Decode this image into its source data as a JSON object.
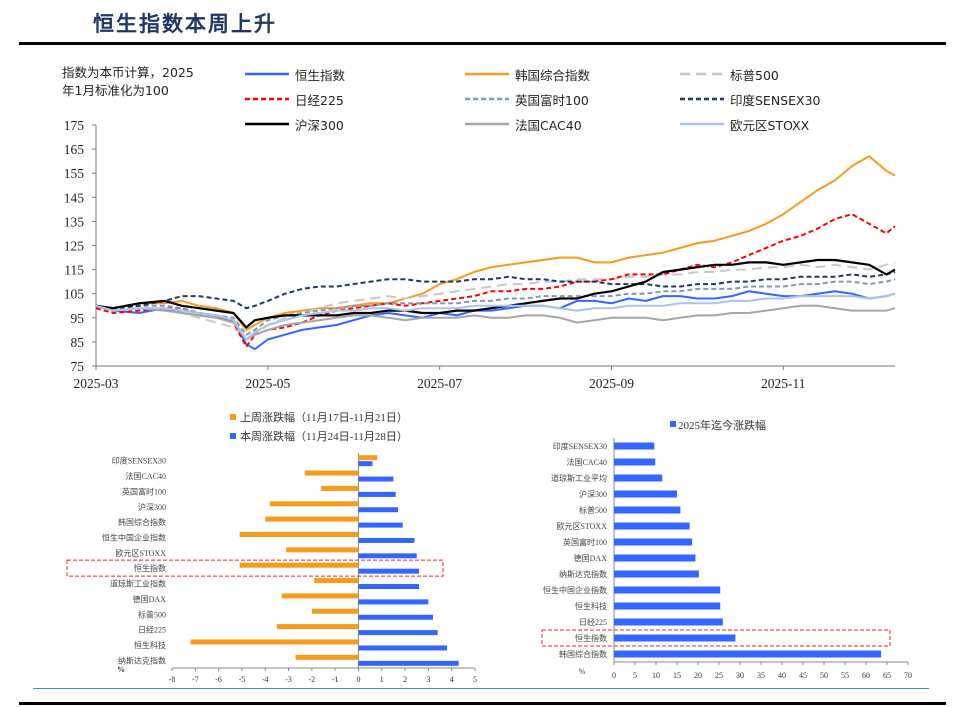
{
  "page": {
    "title": "恒生指数本周上升"
  },
  "chart_data": [
    {
      "id": "index-performance",
      "type": "line",
      "title": "",
      "note": [
        "指数为本币计算，2025",
        "年1月标准化为100"
      ],
      "xlabel": "",
      "ylabel": "",
      "x_ticks": [
        "2025-03",
        "2025-05",
        "2025-07",
        "2025-09",
        "2025-11"
      ],
      "y_ticks": [
        75,
        85,
        95,
        105,
        115,
        125,
        135,
        145,
        155,
        165,
        175
      ],
      "ylim": [
        75,
        175
      ],
      "xlim_months_from_2025_03": [
        0,
        9.3
      ],
      "legend_position": "top",
      "x_unit": "months since 2025-03-01",
      "series": [
        {
          "name": "恒生指数",
          "color": "#3366ff",
          "dash": "solid",
          "width": 2,
          "x": [
            0,
            0.2,
            0.5,
            0.8,
            1,
            1.2,
            1.4,
            1.6,
            1.75,
            1.85,
            2.0,
            2.2,
            2.4,
            2.6,
            2.8,
            3.0,
            3.2,
            3.4,
            3.6,
            3.8,
            4.0,
            4.2,
            4.4,
            4.6,
            4.8,
            5.0,
            5.2,
            5.4,
            5.6,
            5.8,
            6.0,
            6.2,
            6.4,
            6.6,
            6.8,
            7.0,
            7.2,
            7.4,
            7.6,
            7.8,
            8.0,
            8.2,
            8.4,
            8.6,
            8.8,
            9.0,
            9.2,
            9.3
          ],
          "y": [
            100,
            98,
            97,
            99,
            97,
            96,
            95,
            94,
            84,
            82,
            86,
            88,
            90,
            91,
            92,
            94,
            96,
            97,
            96,
            95,
            97,
            96,
            98,
            98,
            99,
            100,
            100,
            99,
            102,
            102,
            101,
            103,
            102,
            104,
            104,
            103,
            103,
            104,
            106,
            105,
            104,
            104,
            105,
            106,
            105,
            103,
            104,
            105
          ]
        },
        {
          "name": "韩国综合指数",
          "color": "#f89a1b",
          "dash": "solid",
          "width": 2,
          "x": [
            0,
            0.2,
            0.5,
            0.8,
            1,
            1.2,
            1.4,
            1.6,
            1.75,
            1.85,
            2.0,
            2.2,
            2.4,
            2.6,
            2.8,
            3.0,
            3.2,
            3.4,
            3.6,
            3.8,
            4.0,
            4.2,
            4.4,
            4.6,
            4.8,
            5.0,
            5.2,
            5.4,
            5.6,
            5.8,
            6.0,
            6.2,
            6.4,
            6.6,
            6.8,
            7.0,
            7.2,
            7.4,
            7.6,
            7.8,
            8.0,
            8.2,
            8.4,
            8.6,
            8.8,
            9.0,
            9.2,
            9.3
          ],
          "y": [
            100,
            99,
            101,
            101,
            102,
            100,
            99,
            97,
            90,
            92,
            95,
            97,
            98,
            99,
            99,
            100,
            101,
            101,
            103,
            105,
            109,
            111,
            114,
            116,
            117,
            118,
            119,
            120,
            120,
            118,
            118,
            120,
            121,
            122,
            124,
            126,
            127,
            129,
            131,
            134,
            138,
            143,
            148,
            152,
            158,
            162,
            156,
            154
          ]
        },
        {
          "name": "标普500",
          "color": "#c8c8c8",
          "dash": "longdash",
          "width": 2,
          "x": [
            0,
            0.2,
            0.5,
            0.8,
            1,
            1.2,
            1.4,
            1.6,
            1.75,
            1.85,
            2.0,
            2.2,
            2.4,
            2.6,
            2.8,
            3.0,
            3.2,
            3.4,
            3.6,
            3.8,
            4.0,
            4.2,
            4.4,
            4.6,
            4.8,
            5.0,
            5.2,
            5.4,
            5.6,
            5.8,
            6.0,
            6.2,
            6.4,
            6.6,
            6.8,
            7.0,
            7.2,
            7.4,
            7.6,
            7.8,
            8.0,
            8.2,
            8.4,
            8.6,
            8.8,
            9.0,
            9.2,
            9.3
          ],
          "y": [
            100,
            98,
            99,
            98,
            97,
            95,
            93,
            91,
            87,
            88,
            92,
            95,
            97,
            99,
            101,
            102,
            103,
            104,
            103,
            104,
            105,
            106,
            107,
            108,
            109,
            109,
            110,
            110,
            111,
            111,
            111,
            112,
            112,
            113,
            113,
            114,
            114,
            115,
            115,
            116,
            116,
            117,
            116,
            117,
            116,
            115,
            117,
            118
          ]
        },
        {
          "name": "日经225",
          "color": "#ff0000",
          "dash": "dash",
          "width": 2,
          "x": [
            0,
            0.2,
            0.5,
            0.8,
            1,
            1.2,
            1.4,
            1.6,
            1.75,
            1.85,
            2.0,
            2.2,
            2.4,
            2.6,
            2.8,
            3.0,
            3.2,
            3.4,
            3.6,
            3.8,
            4.0,
            4.2,
            4.4,
            4.6,
            4.8,
            5.0,
            5.2,
            5.4,
            5.6,
            5.8,
            6.0,
            6.2,
            6.4,
            6.6,
            6.8,
            7.0,
            7.2,
            7.4,
            7.6,
            7.8,
            8.0,
            8.2,
            8.4,
            8.6,
            8.8,
            9.0,
            9.2,
            9.3
          ],
          "y": [
            99,
            97,
            98,
            99,
            99,
            97,
            96,
            93,
            83,
            88,
            90,
            91,
            93,
            96,
            98,
            99,
            100,
            101,
            100,
            101,
            102,
            103,
            104,
            106,
            106,
            107,
            107,
            108,
            110,
            110,
            111,
            113,
            113,
            113,
            115,
            117,
            116,
            118,
            121,
            124,
            127,
            129,
            132,
            136,
            138,
            134,
            130,
            133
          ]
        },
        {
          "name": "英国富时100",
          "color": "#8497b0",
          "dash": "dash",
          "width": 2,
          "x": [
            0,
            0.2,
            0.5,
            0.8,
            1,
            1.2,
            1.4,
            1.6,
            1.75,
            1.85,
            2.0,
            2.2,
            2.4,
            2.6,
            2.8,
            3.0,
            3.2,
            3.4,
            3.6,
            3.8,
            4.0,
            4.2,
            4.4,
            4.6,
            4.8,
            5.0,
            5.2,
            5.4,
            5.6,
            5.8,
            6.0,
            6.2,
            6.4,
            6.6,
            6.8,
            7.0,
            7.2,
            7.4,
            7.6,
            7.8,
            8.0,
            8.2,
            8.4,
            8.6,
            8.8,
            9.0,
            9.2,
            9.3
          ],
          "y": [
            100,
            99,
            100,
            100,
            99,
            97,
            96,
            95,
            88,
            90,
            94,
            96,
            97,
            98,
            99,
            100,
            100,
            101,
            101,
            101,
            101,
            101,
            102,
            102,
            103,
            103,
            104,
            104,
            104,
            104,
            104,
            105,
            105,
            106,
            106,
            107,
            107,
            107,
            108,
            108,
            108,
            109,
            109,
            110,
            110,
            109,
            110,
            111
          ]
        },
        {
          "name": "印度SENSEX30",
          "color": "#1f3864",
          "dash": "dash",
          "width": 2,
          "x": [
            0,
            0.2,
            0.5,
            0.8,
            1,
            1.2,
            1.4,
            1.6,
            1.75,
            1.85,
            2.0,
            2.2,
            2.4,
            2.6,
            2.8,
            3.0,
            3.2,
            3.4,
            3.6,
            3.8,
            4.0,
            4.2,
            4.4,
            4.6,
            4.8,
            5.0,
            5.2,
            5.4,
            5.6,
            5.8,
            6.0,
            6.2,
            6.4,
            6.6,
            6.8,
            7.0,
            7.2,
            7.4,
            7.6,
            7.8,
            8.0,
            8.2,
            8.4,
            8.6,
            8.8,
            9.0,
            9.2,
            9.3
          ],
          "y": [
            100,
            99,
            100,
            102,
            104,
            104,
            103,
            102,
            99,
            100,
            102,
            105,
            107,
            108,
            108,
            109,
            110,
            111,
            111,
            110,
            110,
            110,
            111,
            111,
            112,
            111,
            111,
            110,
            110,
            110,
            109,
            109,
            109,
            108,
            108,
            109,
            109,
            110,
            110,
            111,
            111,
            112,
            112,
            112,
            113,
            112,
            113,
            114
          ]
        },
        {
          "name": "沪深300",
          "color": "#000000",
          "dash": "solid",
          "width": 2.2,
          "x": [
            0,
            0.2,
            0.5,
            0.8,
            1,
            1.2,
            1.4,
            1.6,
            1.75,
            1.85,
            2.0,
            2.2,
            2.4,
            2.6,
            2.8,
            3.0,
            3.2,
            3.4,
            3.6,
            3.8,
            4.0,
            4.2,
            4.4,
            4.6,
            4.8,
            5.0,
            5.2,
            5.4,
            5.6,
            5.8,
            6.0,
            6.2,
            6.4,
            6.6,
            6.8,
            7.0,
            7.2,
            7.4,
            7.6,
            7.8,
            8.0,
            8.2,
            8.4,
            8.6,
            8.8,
            9.0,
            9.2,
            9.3
          ],
          "y": [
            100,
            99,
            101,
            102,
            100,
            99,
            98,
            97,
            91,
            94,
            95,
            96,
            96,
            96,
            96,
            97,
            97,
            98,
            98,
            97,
            97,
            98,
            98,
            99,
            100,
            101,
            102,
            103,
            103,
            105,
            106,
            108,
            110,
            114,
            115,
            116,
            117,
            117,
            118,
            118,
            117,
            118,
            119,
            119,
            118,
            117,
            113,
            115
          ]
        },
        {
          "name": "法国CAC40",
          "color": "#a6a6a6",
          "dash": "solid",
          "width": 2,
          "x": [
            0,
            0.2,
            0.5,
            0.8,
            1,
            1.2,
            1.4,
            1.6,
            1.75,
            1.85,
            2.0,
            2.2,
            2.4,
            2.6,
            2.8,
            3.0,
            3.2,
            3.4,
            3.6,
            3.8,
            4.0,
            4.2,
            4.4,
            4.6,
            4.8,
            5.0,
            5.2,
            5.4,
            5.6,
            5.8,
            6.0,
            6.2,
            6.4,
            6.6,
            6.8,
            7.0,
            7.2,
            7.4,
            7.6,
            7.8,
            8.0,
            8.2,
            8.4,
            8.6,
            8.8,
            9.0,
            9.2,
            9.3
          ],
          "y": [
            100,
            98,
            99,
            98,
            97,
            96,
            95,
            93,
            86,
            88,
            90,
            92,
            93,
            94,
            95,
            96,
            96,
            95,
            94,
            95,
            95,
            95,
            96,
            95,
            95,
            96,
            96,
            95,
            93,
            94,
            95,
            95,
            95,
            94,
            95,
            96,
            96,
            97,
            97,
            98,
            99,
            100,
            100,
            99,
            98,
            98,
            98,
            99
          ]
        },
        {
          "name": "欧元区STOXX",
          "color": "#a9c4eb",
          "dash": "solid",
          "width": 2,
          "x": [
            0,
            0.2,
            0.5,
            0.8,
            1,
            1.2,
            1.4,
            1.6,
            1.75,
            1.85,
            2.0,
            2.2,
            2.4,
            2.6,
            2.8,
            3.0,
            3.2,
            3.4,
            3.6,
            3.8,
            4.0,
            4.2,
            4.4,
            4.6,
            4.8,
            5.0,
            5.2,
            5.4,
            5.6,
            5.8,
            6.0,
            6.2,
            6.4,
            6.6,
            6.8,
            7.0,
            7.2,
            7.4,
            7.6,
            7.8,
            8.0,
            8.2,
            8.4,
            8.6,
            8.8,
            9.0,
            9.2,
            9.3
          ],
          "y": [
            100,
            98,
            99,
            99,
            98,
            97,
            96,
            94,
            86,
            89,
            92,
            94,
            96,
            97,
            98,
            98,
            99,
            99,
            98,
            99,
            99,
            99,
            100,
            100,
            100,
            100,
            100,
            99,
            98,
            99,
            99,
            100,
            100,
            100,
            101,
            101,
            101,
            102,
            102,
            103,
            103,
            104,
            104,
            104,
            104,
            103,
            104,
            105
          ]
        }
      ]
    },
    {
      "id": "weekly-change",
      "type": "bar",
      "orientation": "horizontal",
      "title": "",
      "unit_label": "%",
      "xlim": [
        -8,
        5
      ],
      "x_ticks": [
        -8,
        -7,
        -6,
        -5,
        -4,
        -3,
        -2,
        -1,
        0,
        1,
        2,
        3,
        4,
        5
      ],
      "legend_position": "top",
      "categories": [
        "印度SENSEX30",
        "法国CAC40",
        "英国富时100",
        "沪深300",
        "韩国综合指数",
        "恒生中国企业指数",
        "欧元区STOXX",
        "恒生指数",
        "道琼斯工业指数",
        "德国DAX",
        "标普500",
        "日经225",
        "恒生科技",
        "纳斯达克指数"
      ],
      "highlight_category": "恒生指数",
      "series": [
        {
          "name": "上周涨跌幅（11月17日-11月21日）",
          "color": "#f89a1b",
          "values": [
            0.8,
            -2.3,
            -1.6,
            -3.8,
            -4.0,
            -5.1,
            -3.1,
            -5.1,
            -1.9,
            -3.3,
            -2.0,
            -3.5,
            -7.2,
            -2.7
          ]
        },
        {
          "name": "本周涨跌幅（11月24日-11月28日）",
          "color": "#3366ff",
          "values": [
            0.6,
            1.5,
            1.6,
            1.7,
            1.9,
            2.4,
            2.5,
            2.6,
            2.6,
            3.0,
            3.2,
            3.4,
            3.8,
            4.3
          ]
        }
      ]
    },
    {
      "id": "ytd-change",
      "type": "bar",
      "orientation": "horizontal",
      "title": "",
      "unit_label": "%",
      "xlim": [
        0,
        70
      ],
      "x_ticks": [
        0,
        5,
        10,
        15,
        20,
        25,
        30,
        35,
        40,
        45,
        50,
        55,
        60,
        65,
        70
      ],
      "legend_position": "top",
      "categories": [
        "印度SENSEX30",
        "法国CAC40",
        "道琼斯工业平均",
        "沪深300",
        "标普500",
        "欧元区STOXX",
        "英国富时100",
        "德国DAX",
        "纳斯达克指数",
        "恒生中国企业指数",
        "恒生科技",
        "日经225",
        "恒生指数",
        "韩国综合指数"
      ],
      "highlight_category": "恒生指数",
      "series": [
        {
          "name": "2025年迄今涨跌幅",
          "color": "#3366ff",
          "values": [
            9.6,
            9.8,
            11.5,
            15.0,
            15.8,
            18.0,
            18.6,
            19.4,
            20.2,
            25.3,
            25.3,
            25.9,
            28.9,
            63.6
          ]
        }
      ]
    }
  ]
}
